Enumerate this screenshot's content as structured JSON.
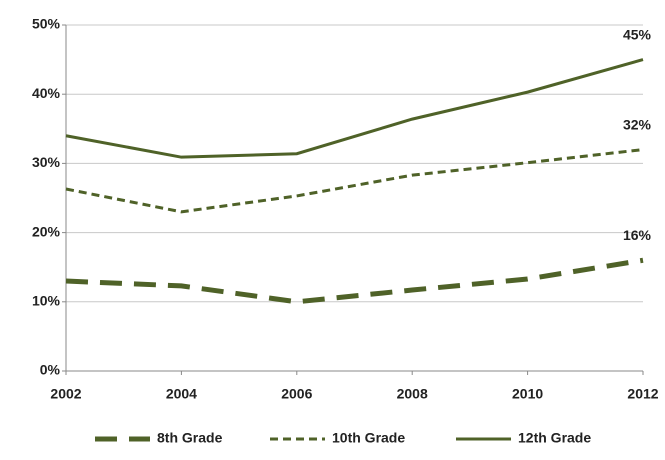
{
  "chart_data": {
    "type": "line",
    "x": [
      2002,
      2004,
      2006,
      2008,
      2010,
      2012
    ],
    "xlim": [
      2002,
      2012
    ],
    "xticks": [
      2002,
      2004,
      2006,
      2008,
      2010,
      2012
    ],
    "ylim": [
      0,
      50
    ],
    "yticks": [
      {
        "value": 0,
        "label": "0%"
      },
      {
        "value": 10,
        "label": "10%"
      },
      {
        "value": 20,
        "label": "20%"
      },
      {
        "value": 30,
        "label": "30%"
      },
      {
        "value": 40,
        "label": "40%"
      },
      {
        "value": 50,
        "label": "50%"
      }
    ],
    "grid": true,
    "legend": "bottom",
    "series": [
      {
        "name": "8th Grade",
        "color": "#4f6228",
        "line_style": "long-dash",
        "values": [
          13.0,
          12.3,
          10.0,
          11.7,
          13.3,
          16
        ],
        "value_labels": [
          null,
          null,
          null,
          null,
          null,
          "16%"
        ]
      },
      {
        "name": "10th Grade",
        "color": "#4f6228",
        "line_style": "short-dash",
        "values": [
          26.3,
          23.0,
          25.3,
          28.3,
          30.1,
          32
        ],
        "value_labels": [
          null,
          null,
          null,
          null,
          null,
          "32%"
        ]
      },
      {
        "name": "12th Grade",
        "color": "#4f6228",
        "line_style": "solid",
        "values": [
          34.0,
          30.9,
          31.4,
          36.4,
          40.3,
          45
        ],
        "value_labels": [
          null,
          null,
          null,
          null,
          null,
          "45%"
        ]
      }
    ]
  }
}
